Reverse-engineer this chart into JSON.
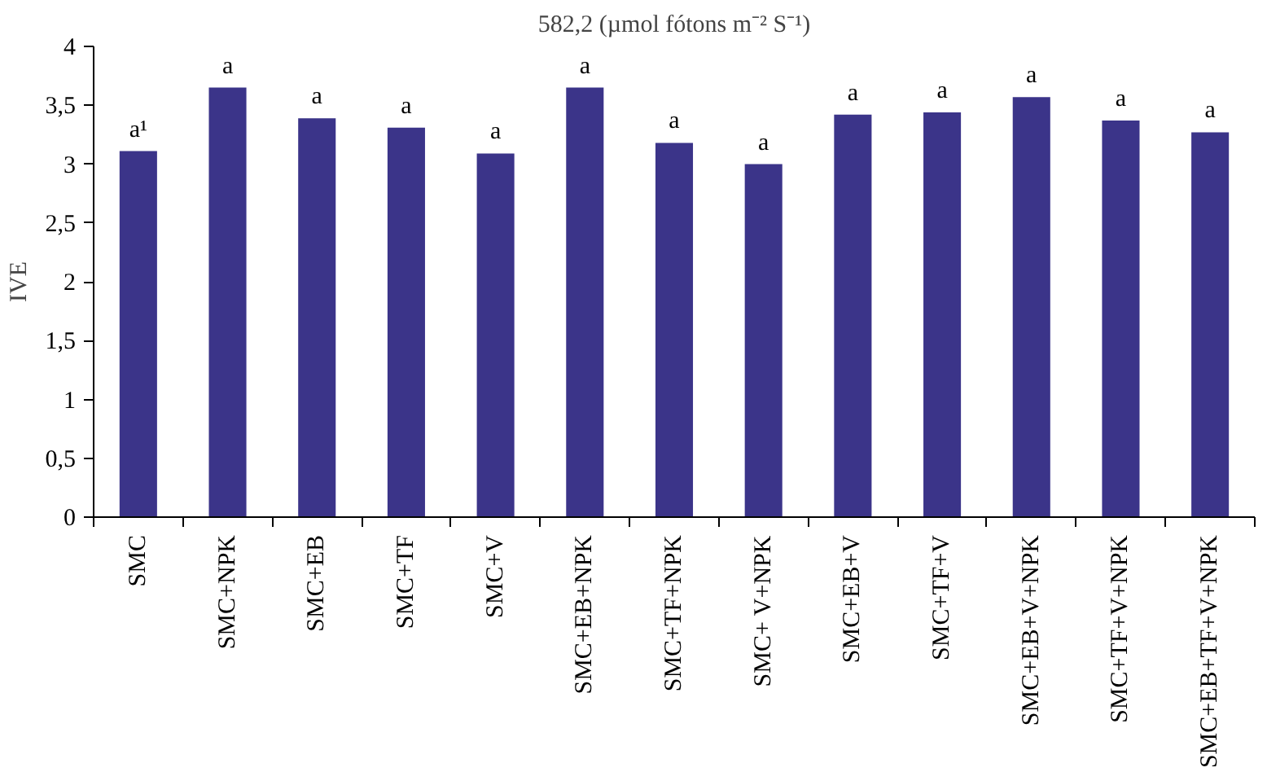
{
  "chart_data": {
    "type": "bar",
    "title": "582,2 (µmol fótons m⁻² S⁻¹)",
    "ylabel": "IVE",
    "categories": [
      "SMC",
      "SMC+NPK",
      "SMC+EB",
      "SMC+TF",
      "SMC+V",
      "SMC+EB+NPK",
      "SMC+TF+NPK",
      "SMC+ V+NPK",
      "SMC+EB+V",
      "SMC+TF+V",
      "SMC+EB+V+NPK",
      "SMC+TF+V+NPK",
      "SMC+EB+TF+V+NPK"
    ],
    "values": [
      3.11,
      3.65,
      3.39,
      3.31,
      3.09,
      3.65,
      3.18,
      3.0,
      3.42,
      3.44,
      3.57,
      3.37,
      3.27
    ],
    "value_labels": [
      "a¹",
      "a",
      "a",
      "a",
      "a",
      "a",
      "a",
      "a",
      "a",
      "a",
      "a",
      "a",
      "a"
    ],
    "color": "#3b3489",
    "ylim": [
      0,
      4
    ],
    "yticks": [
      0,
      {
        "value": 0.5,
        "label": "0,5"
      },
      1,
      {
        "value": 1.5,
        "label": "1,5"
      },
      2,
      {
        "value": 2.5,
        "label": "2,5"
      },
      3,
      {
        "value": 3.5,
        "label": "3,5"
      },
      4
    ],
    "grid": false
  }
}
